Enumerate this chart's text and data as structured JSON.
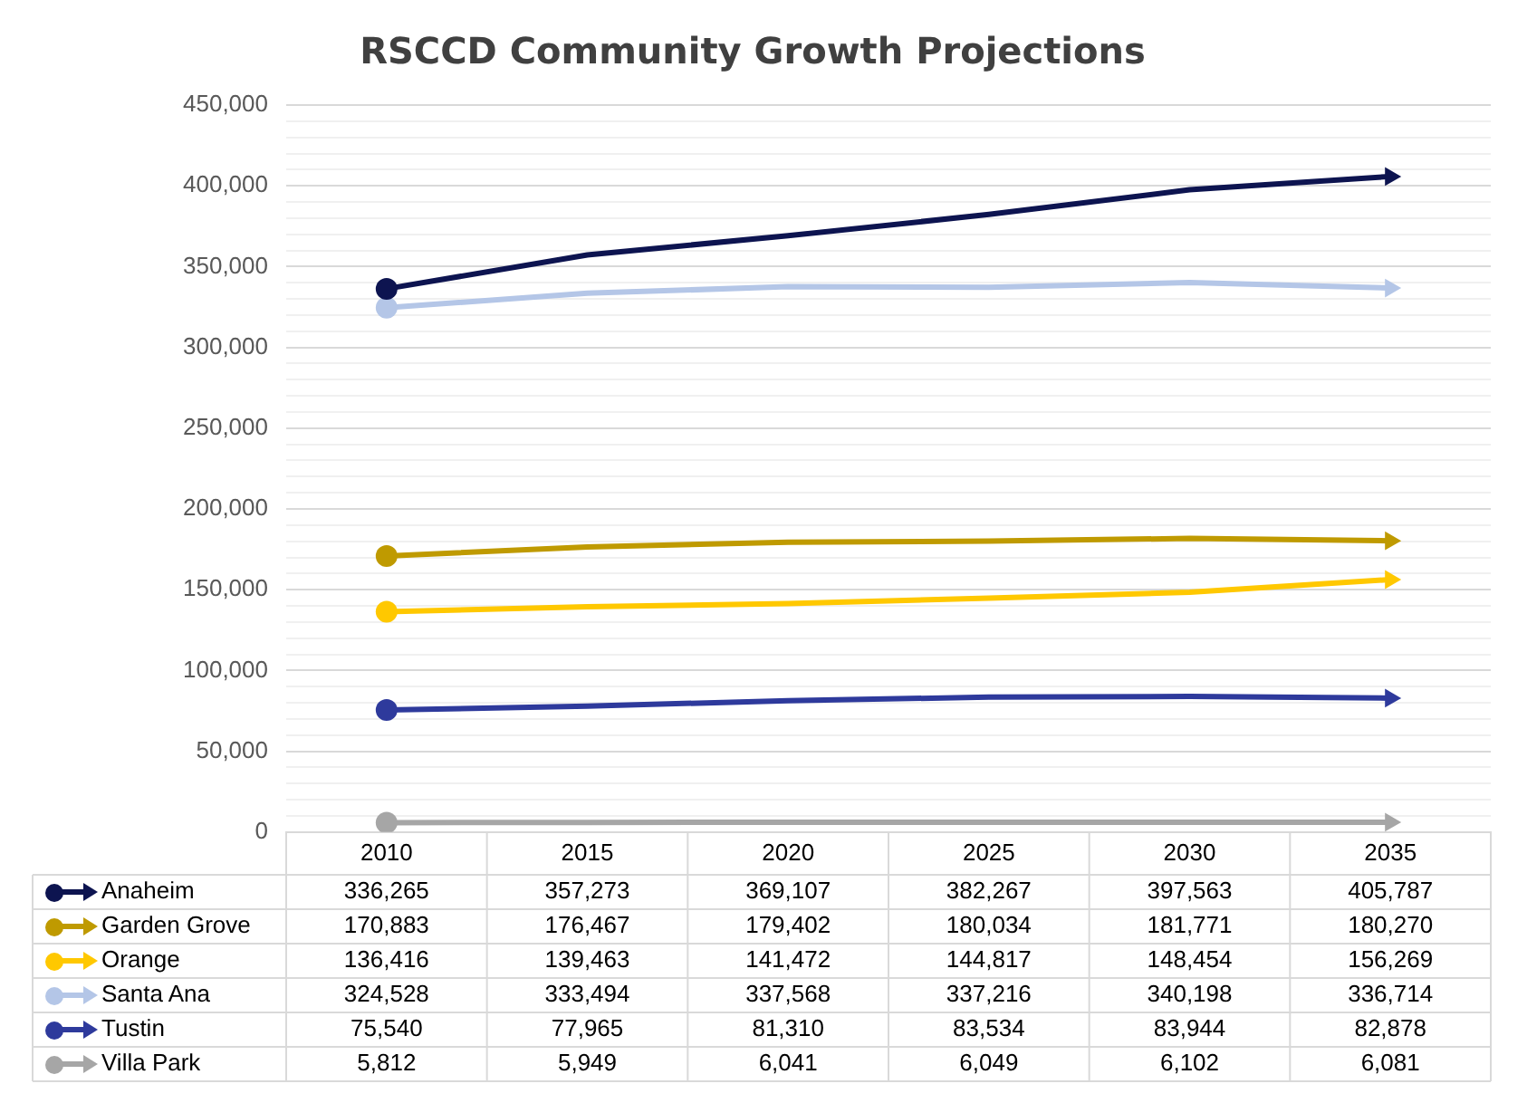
{
  "chart_data": {
    "type": "line",
    "title": "RSCCD Community Growth Projections",
    "categories": [
      "2010",
      "2015",
      "2020",
      "2025",
      "2030",
      "2035"
    ],
    "series": [
      {
        "name": "Anaheim",
        "color": "#0d1450",
        "values": [
          336265,
          357273,
          369107,
          382267,
          397563,
          405787
        ],
        "value_labels": [
          "336,265",
          "357,273",
          "369,107",
          "382,267",
          "397,563",
          "405,787"
        ]
      },
      {
        "name": "Garden Grove",
        "color": "#bf9a00",
        "values": [
          170883,
          176467,
          179402,
          180034,
          181771,
          180270
        ],
        "value_labels": [
          "170,883",
          "176,467",
          "179,402",
          "180,034",
          "181,771",
          "180,270"
        ]
      },
      {
        "name": "Orange",
        "color": "#ffc800",
        "values": [
          136416,
          139463,
          141472,
          144817,
          148454,
          156269
        ],
        "value_labels": [
          "136,416",
          "139,463",
          "141,472",
          "144,817",
          "148,454",
          "156,269"
        ]
      },
      {
        "name": "Santa Ana",
        "color": "#b4c6e7",
        "values": [
          324528,
          333494,
          337568,
          337216,
          340198,
          336714
        ],
        "value_labels": [
          "324,528",
          "333,494",
          "337,568",
          "337,216",
          "340,198",
          "336,714"
        ]
      },
      {
        "name": "Tustin",
        "color": "#2e3a9c",
        "values": [
          75540,
          77965,
          81310,
          83534,
          83944,
          82878
        ],
        "value_labels": [
          "75,540",
          "77,965",
          "81,310",
          "83,534",
          "83,944",
          "82,878"
        ]
      },
      {
        "name": "Villa Park",
        "color": "#a6a6a6",
        "values": [
          5812,
          5949,
          6041,
          6049,
          6102,
          6081
        ],
        "value_labels": [
          "5,812",
          "5,949",
          "6,041",
          "6,049",
          "6,102",
          "6,081"
        ]
      }
    ],
    "ylim": [
      0,
      450000
    ],
    "yticks": [
      0,
      {
        "value": 10000,
        "label": null
      },
      {
        "value": 20000,
        "label": null
      },
      {
        "value": 30000,
        "label": null
      },
      {
        "value": 40000,
        "label": null
      },
      {
        "value": 50000,
        "label": "50,000"
      },
      {
        "value": 60000,
        "label": null
      },
      {
        "value": 70000,
        "label": null
      },
      {
        "value": 80000,
        "label": null
      },
      {
        "value": 90000,
        "label": null
      },
      {
        "value": 100000,
        "label": "100,000"
      },
      {
        "value": 110000,
        "label": null
      },
      {
        "value": 120000,
        "label": null
      },
      {
        "value": 130000,
        "label": null
      },
      {
        "value": 140000,
        "label": null
      },
      {
        "value": 150000,
        "label": "150,000"
      },
      {
        "value": 160000,
        "label": null
      },
      {
        "value": 170000,
        "label": null
      },
      {
        "value": 180000,
        "label": null
      },
      {
        "value": 190000,
        "label": null
      },
      {
        "value": 200000,
        "label": "200,000"
      },
      {
        "value": 210000,
        "label": null
      },
      {
        "value": 220000,
        "label": null
      },
      {
        "value": 230000,
        "label": null
      },
      {
        "value": 240000,
        "label": null
      },
      {
        "value": 250000,
        "label": "250,000"
      },
      {
        "value": 260000,
        "label": null
      },
      {
        "value": 270000,
        "label": null
      },
      {
        "value": 280000,
        "label": null
      },
      {
        "value": 290000,
        "label": null
      },
      {
        "value": 300000,
        "label": "300,000"
      },
      {
        "value": 310000,
        "label": null
      },
      {
        "value": 320000,
        "label": null
      },
      {
        "value": 330000,
        "label": null
      },
      {
        "value": 340000,
        "label": null
      },
      {
        "value": 350000,
        "label": "350,000"
      },
      {
        "value": 360000,
        "label": null
      },
      {
        "value": 370000,
        "label": null
      },
      {
        "value": 380000,
        "label": null
      },
      {
        "value": 390000,
        "label": null
      },
      {
        "value": 400000,
        "label": "400,000"
      },
      {
        "value": 410000,
        "label": null
      },
      {
        "value": 420000,
        "label": null
      },
      {
        "value": 430000,
        "label": null
      },
      {
        "value": 440000,
        "label": null
      },
      {
        "value": 450000,
        "label": "450,000"
      }
    ],
    "grid": "y",
    "legend": "bottom",
    "line_style": "solid"
  }
}
